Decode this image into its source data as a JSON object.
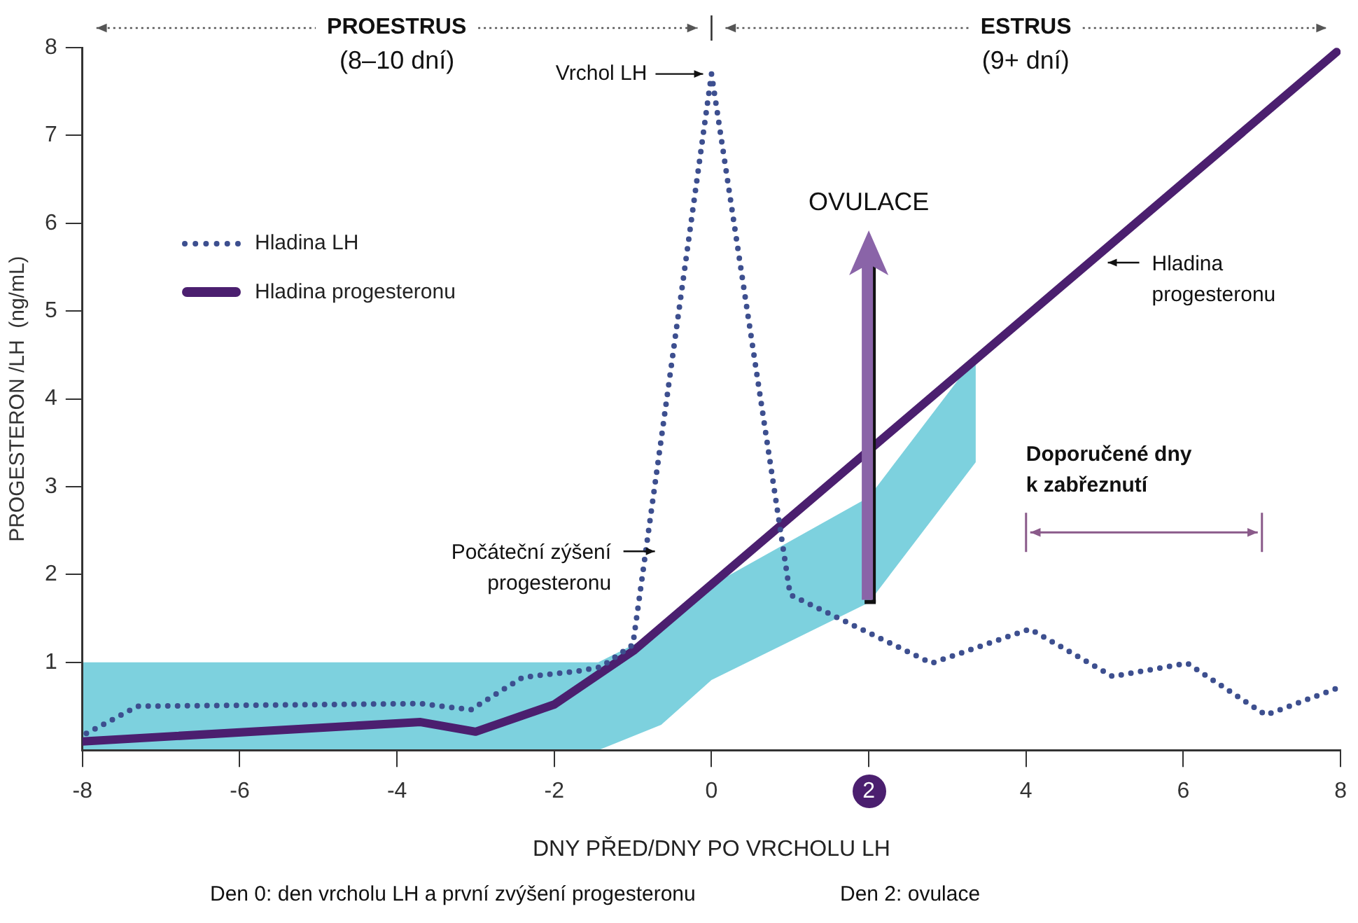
{
  "chart_data": {
    "type": "line",
    "xlabel": "DNY PŘED/DNY PO VRCHOLU LH",
    "ylabel": "PROGESTERON /LH  (ng/mL)",
    "xlim": [
      -8,
      8
    ],
    "xticks": [
      -8,
      -6,
      -4,
      -2,
      0,
      2,
      4,
      6,
      8
    ],
    "ylim": [
      0,
      8
    ],
    "yticks": [
      1,
      2,
      3,
      4,
      5,
      6,
      7,
      8
    ],
    "legend": "top left",
    "series": [
      {
        "name": "Hladina LH",
        "color": "#3d4f8f",
        "line_style": "dotted",
        "x": [
          -7.95,
          -7.3,
          -3.7,
          -3.06,
          -2.4,
          -1.7,
          -1.4,
          -1.0,
          0,
          1.0,
          2.8,
          4.05,
          5.1,
          6.05,
          7.05,
          8
        ],
        "values": [
          0.19,
          0.5,
          0.53,
          0.46,
          0.83,
          0.9,
          0.95,
          1.2,
          7.7,
          1.77,
          0.99,
          1.38,
          0.84,
          0.99,
          0.4,
          0.72
        ]
      },
      {
        "name": "Hladina progesteronu",
        "color": "#4b1f6f",
        "line_style": "solid",
        "x": [
          -8,
          -3.7,
          -3.0,
          -2.0,
          -0.98,
          7.95
        ],
        "values": [
          0.1,
          0.32,
          0.21,
          0.52,
          1.14,
          7.95
        ]
      }
    ],
    "annotations": [
      "PROESTRUS",
      "(8–10 dní)",
      "ESTRUS",
      "(9+ dní)",
      {
        "text": "Vrchol LH",
        "x": 0,
        "y": 7.7
      },
      "OVULACE",
      "Počáteční zýšení\nprogesteronu",
      "Hladina\nprogesteronu",
      "Doporučené dny\nk zabřeznutí",
      "Den 0: den vrcholu LH a první zvýšení progesteronu",
      "Den 2: ovulace"
    ]
  }
}
